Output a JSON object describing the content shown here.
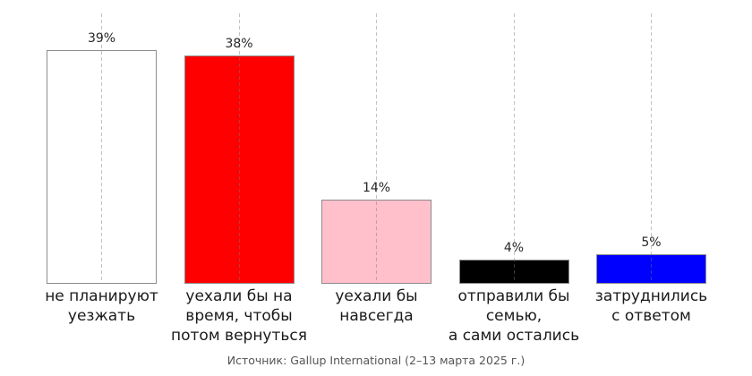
{
  "chart_data": {
    "type": "bar",
    "title": "",
    "categories": [
      "не планируют\nуезжать",
      "уехали бы на\nвремя, чтобы\nпотом вернуться",
      "уехали бы\nнавсегда",
      "отправили бы\nсемью,\nа сами остались",
      "затруднились\nс ответом"
    ],
    "values": [
      39,
      38,
      14,
      4,
      5
    ],
    "value_labels": [
      "39%",
      "38%",
      "14%",
      "4%",
      "5%"
    ],
    "series_colors": [
      "#ffffff",
      "#ff0000",
      "#ffc0cb",
      "#000000",
      "#0000ff"
    ],
    "bar_edge_color": "#8c8c8c",
    "xlabel": "",
    "ylabel": "",
    "ylim": [
      0,
      45
    ],
    "grid": "vertical dashed gridlines at bar centers, drawn over bars",
    "legend": "none",
    "source_note": "Источник: Gallup International (2–13 марта 2025 г.)"
  }
}
